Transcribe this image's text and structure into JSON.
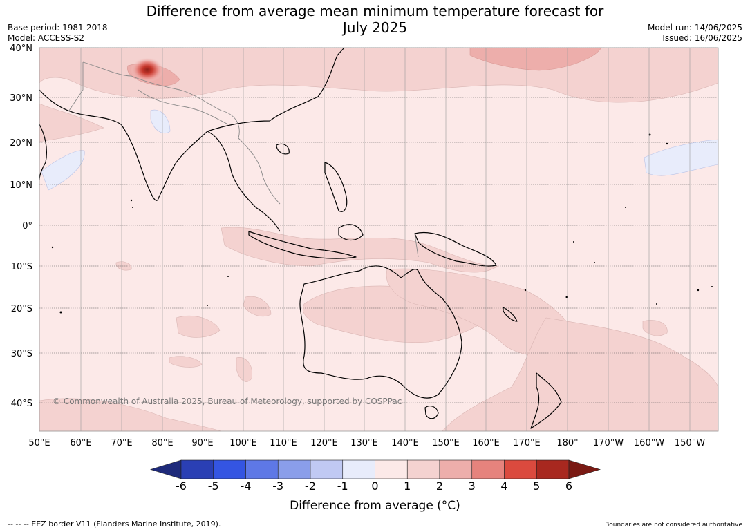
{
  "title": {
    "line1": "Difference from average mean minimum temperature forecast for",
    "line2": "July 2025"
  },
  "meta_left": {
    "base_period": "Base period: 1981-2018",
    "model": "Model: ACCESS-S2"
  },
  "meta_right": {
    "model_run": "Model run: 14/06/2025",
    "issued": "Issued: 16/06/2025"
  },
  "map": {
    "lat_labels": [
      "40°N",
      "30°N",
      "20°N",
      "10°N",
      "0°",
      "10°S",
      "20°S",
      "30°S",
      "40°S"
    ],
    "lon_labels": [
      "50°E",
      "60°E",
      "70°E",
      "80°E",
      "90°E",
      "100°E",
      "110°E",
      "120°E",
      "130°E",
      "140°E",
      "150°E",
      "160°E",
      "170°E",
      "180°",
      "170°W",
      "160°W",
      "150°W"
    ],
    "background_category": "0 to 1",
    "copyright": "© Commonwealth of Australia 2025, Bureau of Meteorology, supported by COSPPac"
  },
  "colorbar": {
    "ticks": [
      "-6",
      "-5",
      "-4",
      "-3",
      "-2",
      "-1",
      "0",
      "1",
      "2",
      "3",
      "4",
      "5",
      "6"
    ],
    "colors": [
      "#1e2a7a",
      "#2a3fb4",
      "#3455e2",
      "#5e78e6",
      "#8a9eea",
      "#c0c9f3",
      "#e8ecfb",
      "#fce9e8",
      "#f4d2d0",
      "#edaeab",
      "#e6837d",
      "#db4a3e",
      "#a8281f",
      "#7a1a14"
    ],
    "label": "Difference from average (°C)"
  },
  "footer": {
    "left": "--  --  -- EEZ border V11 (Flanders Marine Institute, 2019).",
    "right": "Boundaries are not considered authoritative"
  }
}
